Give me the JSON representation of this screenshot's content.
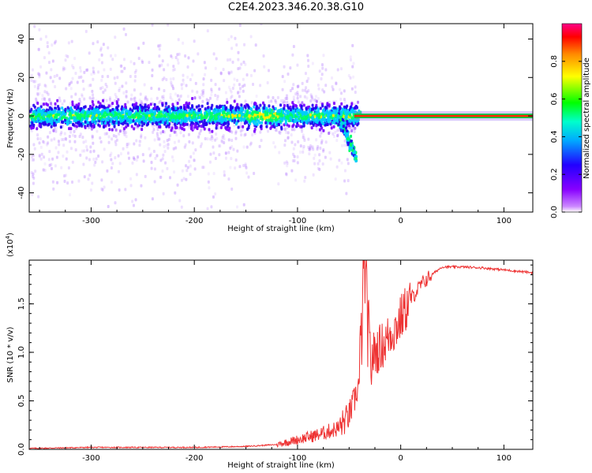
{
  "title": "C2E4.2023.346.20.38.G10",
  "chart_data": [
    {
      "type": "heatmap",
      "xlabel": "Height of straight line (km)",
      "ylabel": "Frequency (Hz)",
      "xlim": [
        -360,
        128
      ],
      "ylim": [
        -50,
        48
      ],
      "xticks": [
        -300,
        -200,
        -100,
        0,
        100
      ],
      "yticks": [
        -40,
        -20,
        0,
        20,
        40
      ],
      "colorbar": {
        "label": "Normalized spectral amplitude",
        "range": [
          0,
          1
        ],
        "ticks": [
          "0.0",
          "0.2",
          "0.4",
          "0.6",
          "0.8"
        ],
        "colormap": [
          "#9900ff",
          "#2200ff",
          "#00ccff",
          "#00ff00",
          "#ffff00",
          "#ff8800",
          "#ff0000",
          "#ff0088"
        ]
      },
      "description_values": {
        "band_center_hz": 0,
        "noise_region_x": [
          -360,
          -45
        ],
        "signal_region_x": [
          -45,
          128
        ]
      }
    },
    {
      "type": "line",
      "xlabel": "Height of straight line (km)",
      "ylabel": "SNR (10 * v/v)",
      "yscale_label": "(x10",
      "yscale_exp": "4",
      "yscale_close": ")",
      "xlim": [
        -360,
        128
      ],
      "ylim": [
        0,
        1.95
      ],
      "xticks": [
        -300,
        -200,
        -100,
        0,
        100
      ],
      "yticks": [
        "0.0",
        "0.5",
        "1.0",
        "1.5"
      ],
      "ytick_values": [
        0,
        0.5,
        1.0,
        1.5
      ],
      "color": "#ee3333",
      "series": [
        {
          "x": [
            -360,
            -300,
            -200,
            -150,
            -120,
            -100,
            -80,
            -60,
            -50,
            -45,
            -40,
            -38,
            -35,
            -30,
            -25,
            -20,
            -15,
            -10,
            -5,
            0,
            10,
            20,
            30,
            40,
            60,
            80,
            100,
            128
          ],
          "values": [
            0.01,
            0.02,
            0.02,
            0.03,
            0.05,
            0.1,
            0.15,
            0.22,
            0.35,
            0.5,
            0.7,
            1.2,
            1.9,
            0.9,
            1.0,
            1.05,
            1.1,
            1.2,
            1.25,
            1.35,
            1.55,
            1.7,
            1.8,
            1.88,
            1.88,
            1.87,
            1.85,
            1.82
          ]
        }
      ]
    }
  ]
}
